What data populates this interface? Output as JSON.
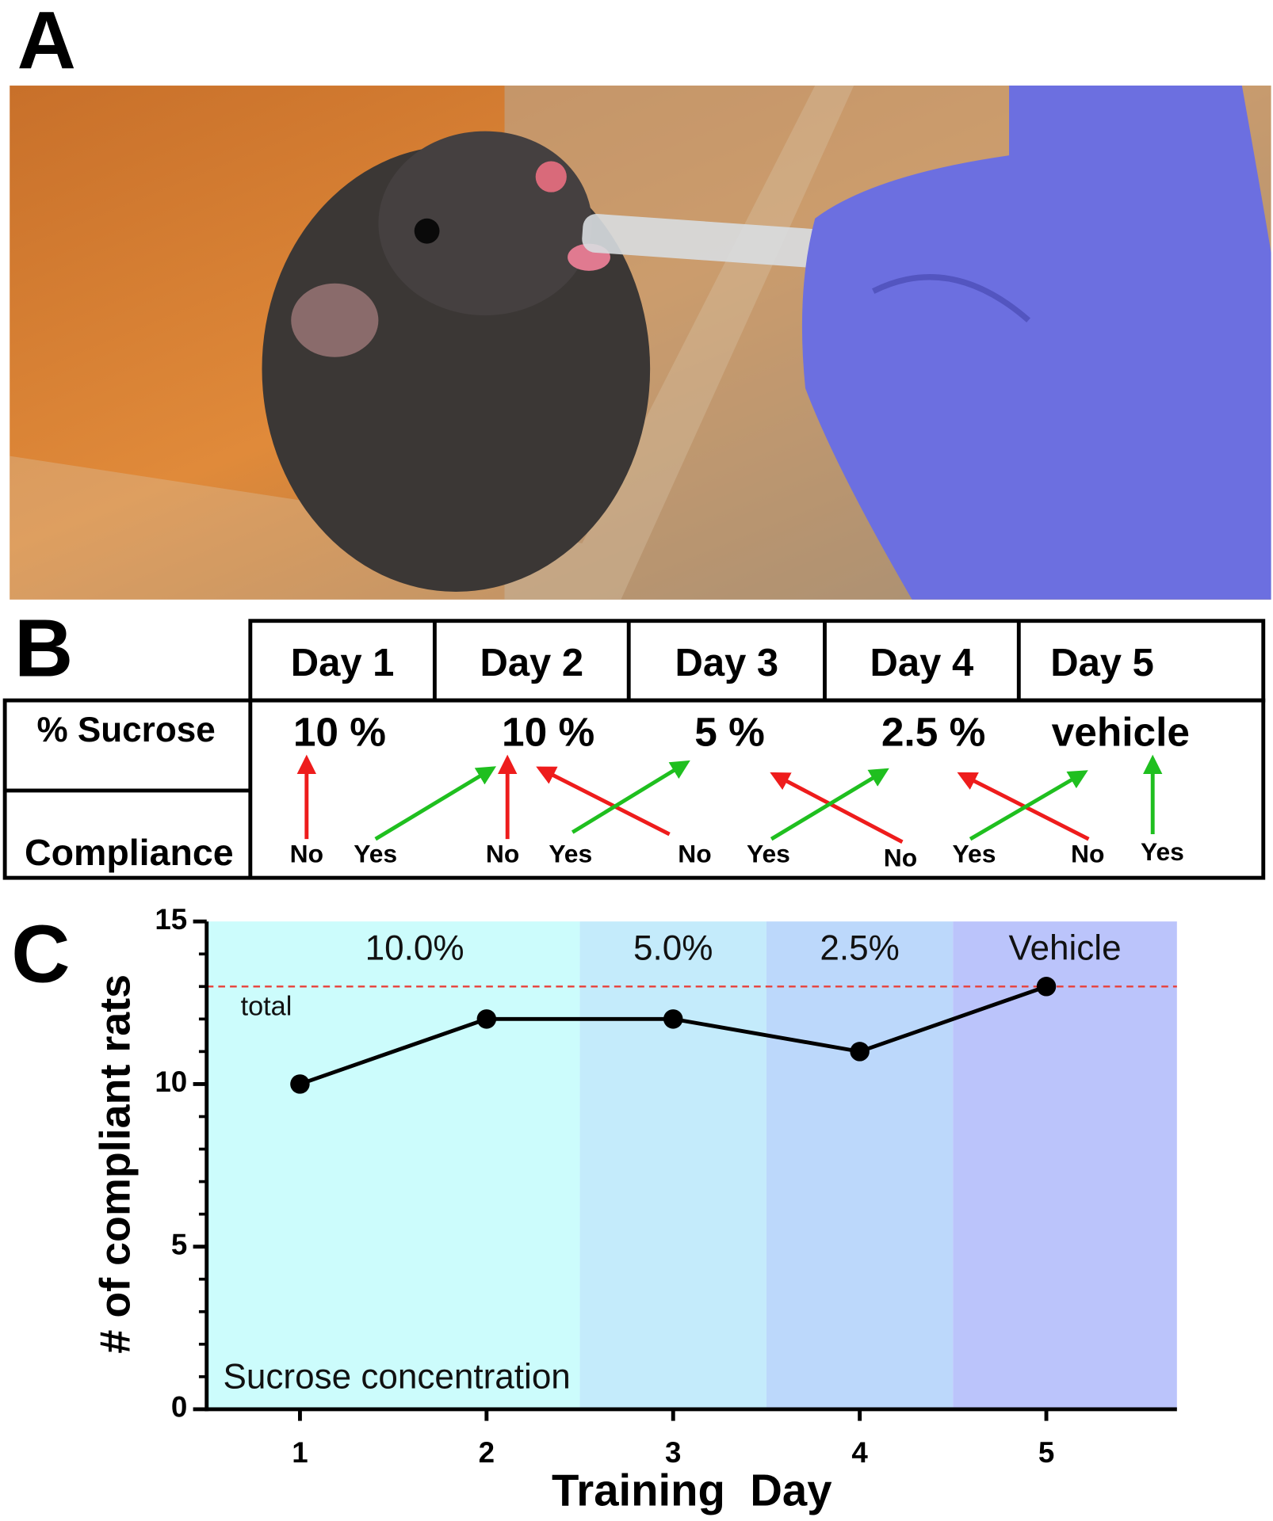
{
  "panel_labels": [
    "A",
    "B",
    "C"
  ],
  "table": {
    "days": [
      "Day 1",
      "Day 2",
      "Day 3",
      "Day 4",
      "Day 5"
    ],
    "rows": [
      {
        "label": "% Sucrose",
        "cells": [
          "10 %",
          "10 %",
          "5 %",
          "2.5 %",
          "vehicle"
        ]
      },
      {
        "label": "Compliance",
        "cells": [
          "No",
          "Yes",
          "No",
          "Yes",
          "No",
          "Yes",
          "No",
          "Yes",
          "No",
          "Yes"
        ]
      }
    ]
  },
  "chart_data": {
    "type": "line",
    "x_label": "Training  Day",
    "y_label": "# of compliant rats",
    "x": [
      1,
      2,
      3,
      4,
      5
    ],
    "values": [
      10,
      12,
      12,
      11,
      13
    ],
    "color": "#000000",
    "xlim": [
      0.5,
      5.7
    ],
    "ylim": [
      0,
      15
    ],
    "xticks": [
      1,
      2,
      3,
      4,
      5
    ],
    "yticks": [
      0,
      5,
      10,
      15
    ],
    "yminorticks": [
      1,
      2,
      3,
      4,
      6,
      7,
      8,
      9,
      11,
      12,
      13,
      14
    ],
    "bands": [
      {
        "from": 0.5,
        "to": 2.5,
        "label": "10.0%",
        "color": "#ccfcfc"
      },
      {
        "from": 2.5,
        "to": 3.5,
        "label": "5.0%",
        "color": "#c4ebfb"
      },
      {
        "from": 3.5,
        "to": 4.5,
        "label": "2.5%",
        "color": "#bcd8fb"
      },
      {
        "from": 4.5,
        "to": 5.7,
        "label": "Vehicle",
        "color": "#bbc4fb"
      }
    ],
    "reference_line": {
      "value": 13,
      "label": "total",
      "color": "#e8403a"
    },
    "annotation": "Sucrose concentration"
  }
}
